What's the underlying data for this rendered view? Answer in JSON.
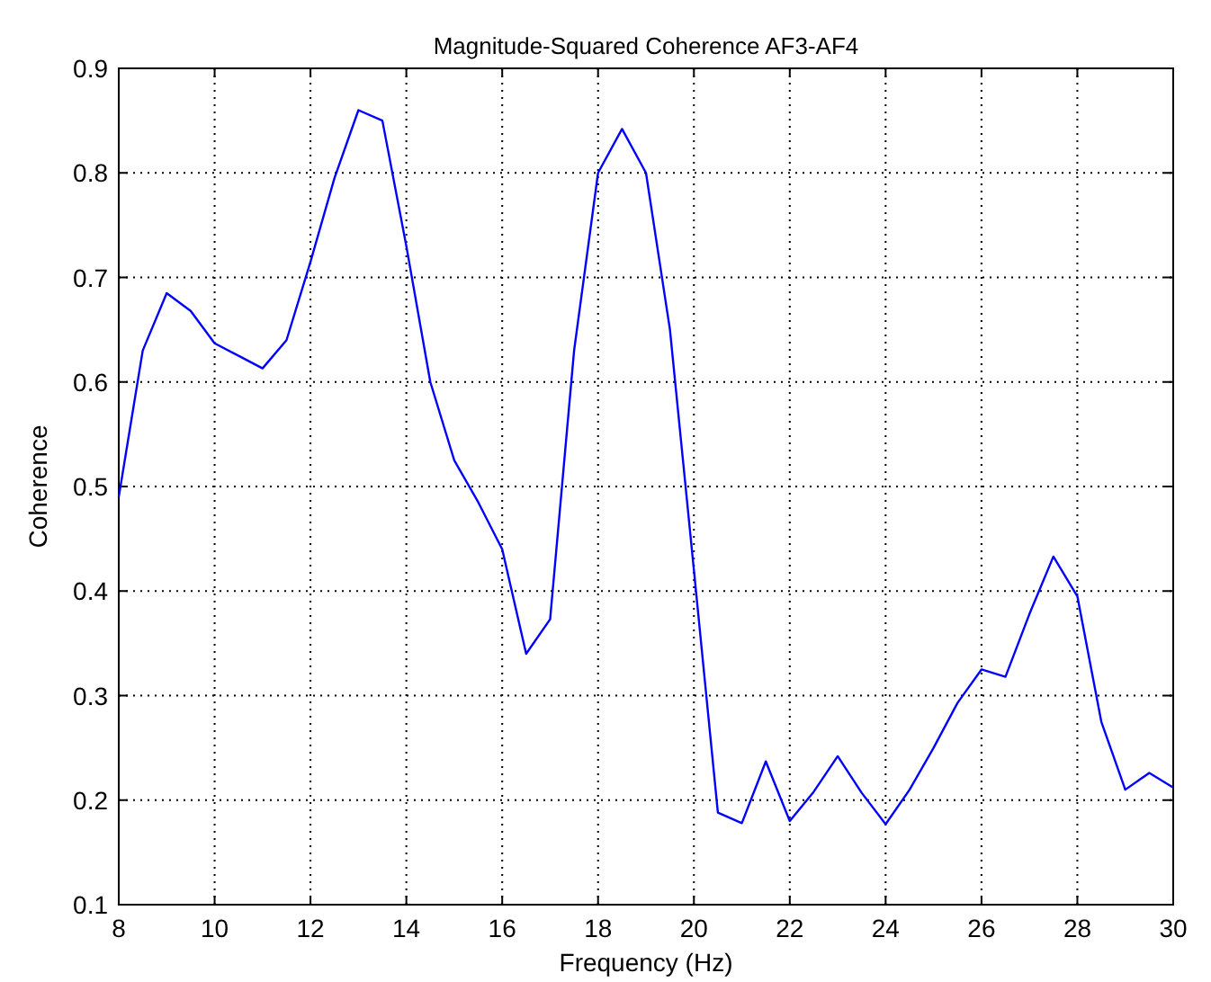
{
  "chart_data": {
    "type": "line",
    "title": "Magnitude-Squared Coherence AF3-AF4",
    "xlabel": "Frequency (Hz)",
    "ylabel": "Coherence",
    "x": [
      8,
      8.5,
      9,
      9.5,
      10,
      10.5,
      11,
      11.5,
      12,
      12.5,
      13,
      13.5,
      14,
      14.5,
      15,
      15.5,
      16,
      16.5,
      17,
      17.5,
      18,
      18.5,
      19,
      19.5,
      20,
      20.5,
      21,
      21.5,
      22,
      22.5,
      23,
      23.5,
      24,
      24.5,
      25,
      25.5,
      26,
      26.5,
      27,
      27.5,
      28,
      28.5,
      29,
      29.5,
      30
    ],
    "series": [
      {
        "color": "#0000ff",
        "values": [
          0.49,
          0.63,
          0.685,
          0.668,
          0.637,
          0.625,
          0.613,
          0.64,
          0.715,
          0.795,
          0.86,
          0.85,
          0.73,
          0.6,
          0.525,
          0.485,
          0.44,
          0.34,
          0.373,
          0.63,
          0.8,
          0.842,
          0.8,
          0.65,
          0.42,
          0.188,
          0.178,
          0.237,
          0.18,
          0.208,
          0.242,
          0.207,
          0.177,
          0.21,
          0.25,
          0.293,
          0.325,
          0.318,
          0.378,
          0.433,
          0.395,
          0.275,
          0.21,
          0.226,
          0.212
        ]
      }
    ],
    "xlim": [
      8,
      30
    ],
    "xticks": [
      8,
      10,
      12,
      14,
      16,
      18,
      20,
      22,
      24,
      26,
      28,
      30
    ],
    "ylim": [
      0.1,
      0.9
    ],
    "yticks": [
      0.1,
      0.2,
      0.3,
      0.4,
      0.5,
      0.6,
      0.7,
      0.8,
      0.9
    ],
    "grid": true,
    "line_style": "solid"
  }
}
